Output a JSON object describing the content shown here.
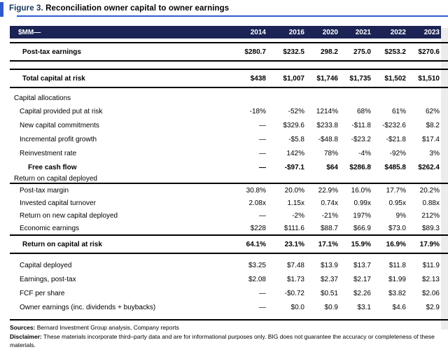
{
  "figure": {
    "label": "Figure 3.",
    "title": "Reconciliation owner capital to owner earnings"
  },
  "colors": {
    "accent_blue": "#2E5BCE",
    "header_navy": "#1B2455",
    "clipped_column_gray": "#ECECEC"
  },
  "table": {
    "unit_header": "$MM—",
    "years": [
      "2014",
      "2016",
      "2020",
      "2021",
      "2022",
      "2023"
    ],
    "body": [
      {
        "type": "rule",
        "v": "double"
      },
      {
        "type": "row",
        "label": "Post-tax earnings",
        "bold": true,
        "tall": true,
        "indent": 2,
        "values": [
          "$280.7",
          "$232.5",
          "298.2",
          "275.0",
          "$253.2",
          "$270.6"
        ]
      },
      {
        "type": "rule",
        "v": "double"
      },
      {
        "type": "gap",
        "h": 10
      },
      {
        "type": "rule",
        "v": "double"
      },
      {
        "type": "row",
        "label": "Total capital at risk",
        "bold": true,
        "tall": true,
        "indent": 2,
        "values": [
          "$438",
          "$1,007",
          "$1,746",
          "$1,735",
          "$1,502",
          "$1,510"
        ]
      },
      {
        "type": "rule",
        "v": "double"
      },
      {
        "type": "gap",
        "h": 5
      },
      {
        "type": "section",
        "label": "Capital allocations"
      },
      {
        "type": "row",
        "label": "Capital provided put at risk",
        "indent": 1,
        "values": [
          "-18%",
          "-52%",
          "1214%",
          "68%",
          "61%",
          "62%"
        ]
      },
      {
        "type": "row",
        "label": "New capital commitments",
        "indent": 1,
        "values": [
          "—",
          "$329.6",
          "$233.8",
          "-$11.8",
          "-$232.6",
          "$8.2"
        ]
      },
      {
        "type": "row",
        "label": "Incremental profit growth",
        "indent": 1,
        "values": [
          "—",
          "-$5.8",
          "-$48.8",
          "-$23.2",
          "-$21.8",
          "$17.4"
        ]
      },
      {
        "type": "row",
        "label": "Reinvestment rate",
        "indent": 1,
        "values": [
          "—",
          "142%",
          "78%",
          "-4%",
          "-92%",
          "3%"
        ]
      },
      {
        "type": "row",
        "label": "Free cash flow",
        "bold": true,
        "indent": 3,
        "clipped": "-",
        "values": [
          "—",
          "-$97.1",
          "$64",
          "$286.8",
          "$485.8",
          "$262.4"
        ]
      },
      {
        "type": "section",
        "label": "Return on capital deployed",
        "short": true
      },
      {
        "type": "rule",
        "v": "heavy"
      },
      {
        "type": "row",
        "label": "Post-tax margin",
        "indent": 1,
        "mid": true,
        "values": [
          "30.8%",
          "20.0%",
          "22.9%",
          "16.0%",
          "17.7%",
          "20.2%"
        ]
      },
      {
        "type": "row",
        "label": "Invested capital turnover",
        "indent": 1,
        "mid": true,
        "values": [
          "2.08x",
          "1.15x",
          "0.74x",
          "0.99x",
          "0.95x",
          "0.88x"
        ]
      },
      {
        "type": "row",
        "label": "Return on new capital deployed",
        "indent": 1,
        "mid": true,
        "values": [
          "—",
          "-2%",
          "-21%",
          "197%",
          "9%",
          "212%"
        ]
      },
      {
        "type": "row",
        "label": "Economic earnings",
        "indent": 1,
        "mid": true,
        "values": [
          "$228",
          "$111.6",
          "$88.7",
          "$66.9",
          "$73.0",
          "$89.3"
        ]
      },
      {
        "type": "rule",
        "v": "heavy"
      },
      {
        "type": "row",
        "label": "Return on capital at risk",
        "bold": true,
        "tall": true,
        "indent": 2,
        "values": [
          "64.1%",
          "23.1%",
          "17.1%",
          "15.9%",
          "16.9%",
          "17.9%"
        ]
      },
      {
        "type": "rule",
        "v": "double"
      },
      {
        "type": "gap",
        "h": 6
      },
      {
        "type": "row",
        "label": "Capital deployed",
        "indent": 1,
        "values": [
          "$3.25",
          "$7.48",
          "$13.9",
          "$13.7",
          "$11.8",
          "$11.9"
        ]
      },
      {
        "type": "row",
        "label": "Earnings, post-tax",
        "indent": 1,
        "values": [
          "$2.08",
          "$1.73",
          "$2.37",
          "$2.17",
          "$1.99",
          "$2.13"
        ]
      },
      {
        "type": "row",
        "label": "FCF per share",
        "indent": 1,
        "values": [
          "—",
          "-$0.72",
          "$0.51",
          "$2.26",
          "$3.82",
          "$2.06"
        ]
      },
      {
        "type": "row",
        "label": "Owner earnings (inc. dividends + buybacks)",
        "indent": 1,
        "values": [
          "—",
          "$0.0",
          "$0.9",
          "$3.1",
          "$4.6",
          "$2.9"
        ]
      },
      {
        "type": "gap",
        "h": 7
      },
      {
        "type": "rule",
        "v": "heavy"
      }
    ]
  },
  "footer": {
    "sources_label": "Sources:",
    "sources_text": " Bernard Investment Group analysis, Company reports",
    "disclaimer_label": "Disclaimer:",
    "disclaimer_text": " These materials incorporate third–party data and are for informational purposes only. BIG does not guarantee the accuracy or completeness of these materials."
  }
}
